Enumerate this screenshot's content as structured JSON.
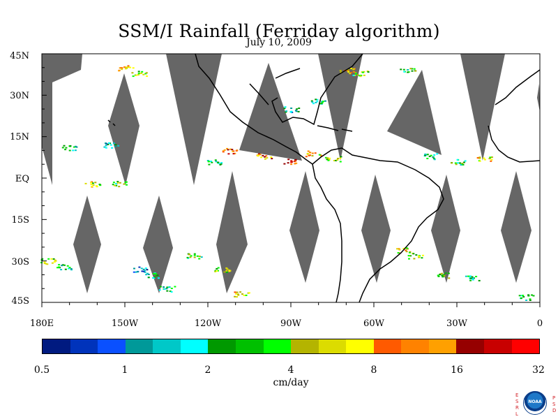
{
  "title": "SSM/I Rainfall (Ferriday algorithm)",
  "subtitle": "July 10, 2009",
  "map": {
    "lon_range": [
      -180,
      0
    ],
    "lat_range": [
      -45,
      45
    ],
    "land_color": "#000000",
    "no_data_color": "#666666",
    "lat_labels": [
      "45N",
      "30N",
      "15N",
      "EQ",
      "15S",
      "30S",
      "45S"
    ],
    "lon_labels": [
      "180E",
      "150W",
      "120W",
      "90W",
      "60W",
      "30W",
      "0"
    ]
  },
  "colorbar": {
    "unit": "cm/day",
    "tick_labels": [
      "0.5",
      "1",
      "2",
      "4",
      "8",
      "16",
      "32"
    ],
    "colors": [
      "#001a80",
      "#0033bb",
      "#0a50ff",
      "#009999",
      "#00c8c8",
      "#00ffff",
      "#009900",
      "#00c000",
      "#00ff00",
      "#b4b400",
      "#dcdc00",
      "#ffff00",
      "#ff5a00",
      "#ff8200",
      "#ffa000",
      "#960000",
      "#c80000",
      "#ff0000"
    ]
  },
  "logo": {
    "left_letters": [
      "E",
      "S",
      "R",
      "L"
    ],
    "right_letters": [
      "P",
      "S",
      "D"
    ],
    "center": "NOAA"
  },
  "chart_data": {
    "type": "heatmap",
    "title": "SSM/I Rainfall (Ferriday algorithm)",
    "subtitle": "July 10, 2009",
    "xlabel": "",
    "ylabel": "",
    "x_range": [
      -180,
      0
    ],
    "y_range": [
      -45,
      45
    ],
    "x_ticks": [
      "180E",
      "150W",
      "120W",
      "90W",
      "60W",
      "30W",
      "0"
    ],
    "y_ticks": [
      "45N",
      "30N",
      "15N",
      "EQ",
      "15S",
      "30S",
      "45S"
    ],
    "color_scale": {
      "unit": "cm/day",
      "min": 0.5,
      "max": 32,
      "scale": "log2"
    },
    "rain_clusters": [
      {
        "lon": -150,
        "lat": 40,
        "value": 12
      },
      {
        "lon": -145,
        "lat": 38,
        "value": 6
      },
      {
        "lon": -170,
        "lat": 11,
        "value": 3
      },
      {
        "lon": -155,
        "lat": 12,
        "value": 2
      },
      {
        "lon": -162,
        "lat": -2,
        "value": 8
      },
      {
        "lon": -152,
        "lat": -2,
        "value": 5
      },
      {
        "lon": -118,
        "lat": 6,
        "value": 3
      },
      {
        "lon": -112,
        "lat": 10,
        "value": 20
      },
      {
        "lon": -100,
        "lat": 8,
        "value": 16
      },
      {
        "lon": -90,
        "lat": 6,
        "value": 24
      },
      {
        "lon": -82,
        "lat": 9,
        "value": 10
      },
      {
        "lon": -75,
        "lat": 7,
        "value": 6
      },
      {
        "lon": -40,
        "lat": 8,
        "value": 3
      },
      {
        "lon": -30,
        "lat": 6,
        "value": 4
      },
      {
        "lon": -20,
        "lat": 7,
        "value": 8
      },
      {
        "lon": -70,
        "lat": 39,
        "value": 10
      },
      {
        "lon": -65,
        "lat": 38,
        "value": 5
      },
      {
        "lon": -48,
        "lat": 39,
        "value": 4
      },
      {
        "lon": -80,
        "lat": 28,
        "value": 3
      },
      {
        "lon": -90,
        "lat": 25,
        "value": 2
      },
      {
        "lon": -178,
        "lat": -30,
        "value": 6
      },
      {
        "lon": -172,
        "lat": -32,
        "value": 3
      },
      {
        "lon": -145,
        "lat": -33,
        "value": 1.5
      },
      {
        "lon": -140,
        "lat": -35,
        "value": 3
      },
      {
        "lon": -125,
        "lat": -28,
        "value": 4
      },
      {
        "lon": -115,
        "lat": -33,
        "value": 6
      },
      {
        "lon": -108,
        "lat": -42,
        "value": 8
      },
      {
        "lon": -50,
        "lat": -26,
        "value": 10
      },
      {
        "lon": -45,
        "lat": -28,
        "value": 6
      },
      {
        "lon": -35,
        "lat": -35,
        "value": 4
      },
      {
        "lon": -25,
        "lat": -36,
        "value": 3
      },
      {
        "lon": -5,
        "lat": -43,
        "value": 3
      },
      {
        "lon": -135,
        "lat": -40,
        "value": 3
      }
    ]
  }
}
